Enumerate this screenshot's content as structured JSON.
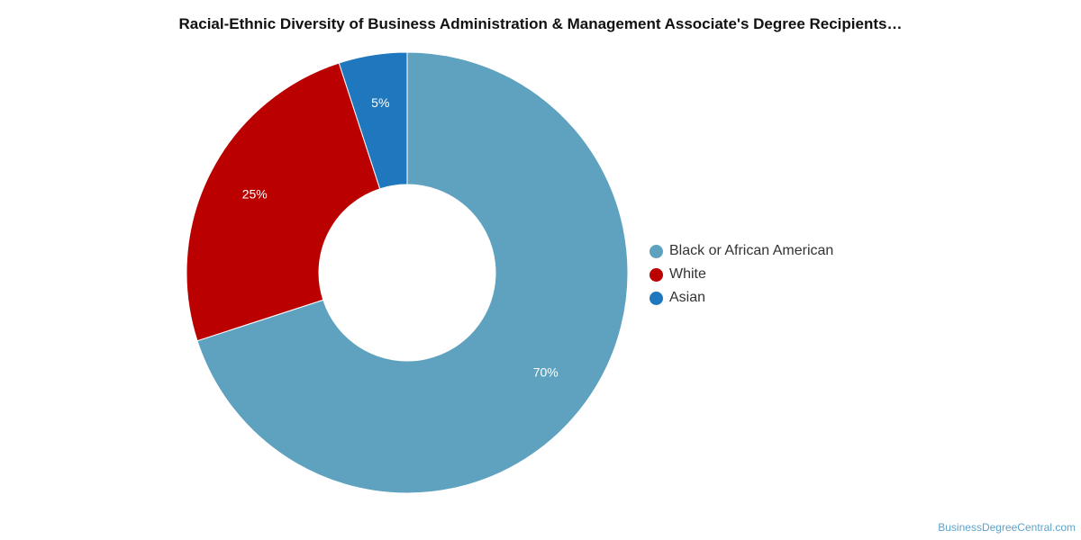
{
  "title": "Racial-Ethnic Diversity of Business Administration & Management Associate's Degree Recipients…",
  "watermark": "BusinessDegreeCentral.com",
  "chart_data": {
    "type": "pie",
    "donut": true,
    "title": "Racial-Ethnic Diversity of Business Administration & Management Associate's Degree Recipients…",
    "legend_position": "right",
    "slices": [
      {
        "name": "Black or African American",
        "value": 70,
        "label": "70%",
        "color": "#5ea2bf"
      },
      {
        "name": "White",
        "value": 25,
        "label": "25%",
        "color": "#bb0000"
      },
      {
        "name": "Asian",
        "value": 5,
        "label": "5%",
        "color": "#1f77bd"
      }
    ]
  }
}
